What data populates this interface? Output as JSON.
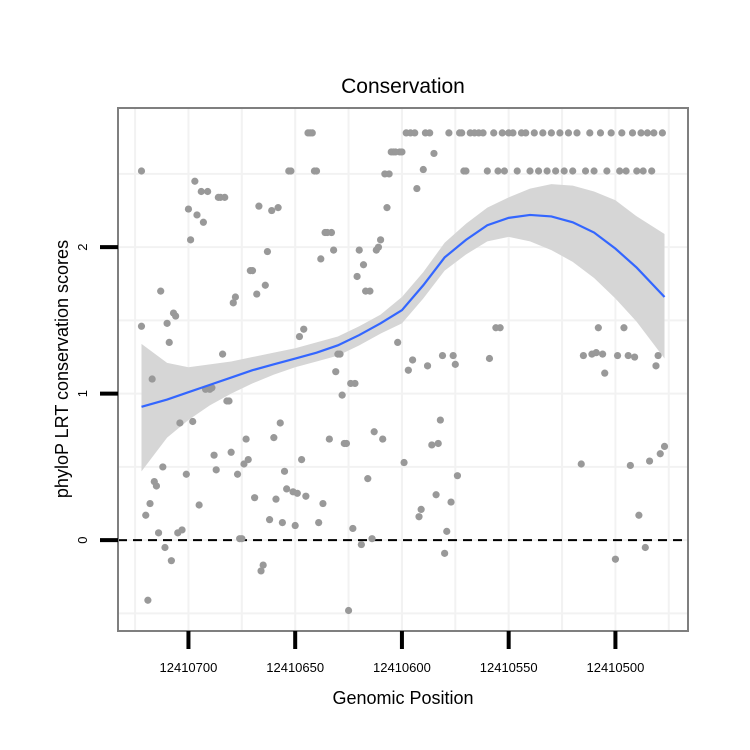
{
  "chart_data": {
    "type": "scatter",
    "title": "Conservation",
    "xlabel": "Genomic Position",
    "ylabel": "phyloP LRT conservation scores",
    "x_reversed": true,
    "xlim": [
      12410733,
      12410466
    ],
    "ylim": [
      -0.62,
      2.95
    ],
    "x_ticks": [
      12410700,
      12410650,
      12410600,
      12410550,
      12410500
    ],
    "x_tick_labels": [
      "12410700",
      "12410650",
      "12410600",
      "12410550",
      "12410500"
    ],
    "y_ticks": [
      0,
      1,
      2
    ],
    "y_tick_labels": [
      "0",
      "1",
      "2"
    ],
    "grid": true,
    "hline": {
      "y": 0,
      "style": "dashed"
    },
    "colors": {
      "points": "#999999",
      "smooth": "#3366FF",
      "ribbon": "#d6d6d6",
      "panel_border": "#7f7f7f",
      "grid": "#f2f2f2"
    },
    "points": [
      [
        12410722,
        2.52
      ],
      [
        12410722,
        1.46
      ],
      [
        12410720,
        0.17
      ],
      [
        12410719,
        -0.41
      ],
      [
        12410718,
        0.25
      ],
      [
        12410717,
        1.1
      ],
      [
        12410716,
        0.4
      ],
      [
        12410715,
        0.37
      ],
      [
        12410714,
        0.05
      ],
      [
        12410713,
        1.7
      ],
      [
        12410712,
        0.5
      ],
      [
        12410711,
        -0.05
      ],
      [
        12410710,
        1.48
      ],
      [
        12410709,
        1.35
      ],
      [
        12410708,
        -0.14
      ],
      [
        12410707,
        1.55
      ],
      [
        12410706,
        1.53
      ],
      [
        12410705,
        0.05
      ],
      [
        12410704,
        0.8
      ],
      [
        12410703,
        0.07
      ],
      [
        12410701,
        0.45
      ],
      [
        12410700,
        2.26
      ],
      [
        12410699,
        2.05
      ],
      [
        12410698,
        0.81
      ],
      [
        12410697,
        2.45
      ],
      [
        12410696,
        2.22
      ],
      [
        12410695,
        0.24
      ],
      [
        12410694,
        2.38
      ],
      [
        12410693,
        2.17
      ],
      [
        12410692,
        1.03
      ],
      [
        12410691,
        2.38
      ],
      [
        12410690,
        1.03
      ],
      [
        12410689,
        1.04
      ],
      [
        12410688,
        0.58
      ],
      [
        12410687,
        0.48
      ],
      [
        12410686,
        2.34
      ],
      [
        12410685,
        2.34
      ],
      [
        12410684,
        1.27
      ],
      [
        12410683,
        2.34
      ],
      [
        12410682,
        0.95
      ],
      [
        12410681,
        0.95
      ],
      [
        12410680,
        0.6
      ],
      [
        12410679,
        1.62
      ],
      [
        12410678,
        1.66
      ],
      [
        12410677,
        0.45
      ],
      [
        12410676,
        0.01
      ],
      [
        12410675,
        0.01
      ],
      [
        12410674,
        0.52
      ],
      [
        12410673,
        0.69
      ],
      [
        12410672,
        0.55
      ],
      [
        12410671,
        1.84
      ],
      [
        12410670,
        1.84
      ],
      [
        12410669,
        0.29
      ],
      [
        12410668,
        1.68
      ],
      [
        12410667,
        2.28
      ],
      [
        12410666,
        -0.21
      ],
      [
        12410665,
        -0.17
      ],
      [
        12410664,
        1.74
      ],
      [
        12410663,
        1.97
      ],
      [
        12410662,
        0.14
      ],
      [
        12410661,
        2.25
      ],
      [
        12410660,
        0.7
      ],
      [
        12410659,
        0.28
      ],
      [
        12410658,
        2.27
      ],
      [
        12410657,
        0.8
      ],
      [
        12410656,
        0.12
      ],
      [
        12410655,
        0.47
      ],
      [
        12410654,
        0.35
      ],
      [
        12410653,
        2.52
      ],
      [
        12410652,
        2.52
      ],
      [
        12410651,
        0.33
      ],
      [
        12410650,
        0.1
      ],
      [
        12410649,
        0.32
      ],
      [
        12410648,
        1.39
      ],
      [
        12410647,
        0.55
      ],
      [
        12410646,
        1.44
      ],
      [
        12410645,
        0.3
      ],
      [
        12410644,
        2.78
      ],
      [
        12410643,
        2.78
      ],
      [
        12410642,
        2.78
      ],
      [
        12410641,
        2.52
      ],
      [
        12410640,
        2.52
      ],
      [
        12410639,
        0.12
      ],
      [
        12410638,
        1.92
      ],
      [
        12410637,
        0.25
      ],
      [
        12410636,
        2.1
      ],
      [
        12410635,
        2.1
      ],
      [
        12410634,
        0.69
      ],
      [
        12410633,
        2.1
      ],
      [
        12410632,
        1.98
      ],
      [
        12410631,
        1.15
      ],
      [
        12410630,
        1.27
      ],
      [
        12410629,
        1.27
      ],
      [
        12410628,
        0.99
      ],
      [
        12410627,
        0.66
      ],
      [
        12410626,
        0.66
      ],
      [
        12410625,
        -0.48
      ],
      [
        12410624,
        1.07
      ],
      [
        12410623,
        0.08
      ],
      [
        12410622,
        1.07
      ],
      [
        12410621,
        1.8
      ],
      [
        12410620,
        1.98
      ],
      [
        12410619,
        -0.03
      ],
      [
        12410618,
        1.88
      ],
      [
        12410617,
        1.7
      ],
      [
        12410616,
        0.42
      ],
      [
        12410615,
        1.7
      ],
      [
        12410614,
        0.01
      ],
      [
        12410613,
        0.74
      ],
      [
        12410612,
        1.98
      ],
      [
        12410611,
        2.0
      ],
      [
        12410610,
        2.05
      ],
      [
        12410609,
        0.69
      ],
      [
        12410608,
        2.5
      ],
      [
        12410607,
        2.27
      ],
      [
        12410606,
        2.5
      ],
      [
        12410605,
        2.65
      ],
      [
        12410604,
        2.65
      ],
      [
        12410603,
        2.65
      ],
      [
        12410602,
        1.35
      ],
      [
        12410601,
        2.65
      ],
      [
        12410600,
        2.65
      ],
      [
        12410599,
        0.53
      ],
      [
        12410598,
        2.78
      ],
      [
        12410597,
        1.16
      ],
      [
        12410596,
        2.78
      ],
      [
        12410595,
        1.23
      ],
      [
        12410594,
        2.78
      ],
      [
        12410593,
        2.4
      ],
      [
        12410592,
        0.16
      ],
      [
        12410591,
        0.21
      ],
      [
        12410590,
        2.53
      ],
      [
        12410589,
        2.78
      ],
      [
        12410588,
        1.19
      ],
      [
        12410587,
        2.78
      ],
      [
        12410586,
        0.65
      ],
      [
        12410585,
        2.64
      ],
      [
        12410584,
        0.31
      ],
      [
        12410583,
        0.66
      ],
      [
        12410582,
        0.82
      ],
      [
        12410581,
        1.26
      ],
      [
        12410580,
        -0.09
      ],
      [
        12410579,
        0.06
      ],
      [
        12410578,
        2.78
      ],
      [
        12410577,
        0.26
      ],
      [
        12410576,
        1.26
      ],
      [
        12410575,
        1.2
      ],
      [
        12410574,
        0.44
      ],
      [
        12410573,
        2.78
      ],
      [
        12410572,
        2.78
      ],
      [
        12410571,
        2.52
      ],
      [
        12410570,
        2.52
      ],
      [
        12410568,
        2.78
      ],
      [
        12410566,
        2.78
      ],
      [
        12410564,
        2.78
      ],
      [
        12410562,
        2.78
      ],
      [
        12410560,
        2.52
      ],
      [
        12410559,
        1.24
      ],
      [
        12410557,
        2.78
      ],
      [
        12410556,
        1.45
      ],
      [
        12410555,
        2.52
      ],
      [
        12410554,
        1.45
      ],
      [
        12410553,
        2.78
      ],
      [
        12410552,
        2.52
      ],
      [
        12410550,
        2.78
      ],
      [
        12410548,
        2.78
      ],
      [
        12410546,
        2.52
      ],
      [
        12410544,
        2.78
      ],
      [
        12410542,
        2.78
      ],
      [
        12410540,
        2.52
      ],
      [
        12410538,
        2.78
      ],
      [
        12410536,
        2.52
      ],
      [
        12410534,
        2.78
      ],
      [
        12410532,
        2.52
      ],
      [
        12410530,
        2.78
      ],
      [
        12410528,
        2.52
      ],
      [
        12410526,
        2.78
      ],
      [
        12410524,
        2.52
      ],
      [
        12410522,
        2.78
      ],
      [
        12410520,
        2.52
      ],
      [
        12410518,
        2.78
      ],
      [
        12410516,
        0.52
      ],
      [
        12410515,
        1.26
      ],
      [
        12410514,
        2.52
      ],
      [
        12410512,
        2.78
      ],
      [
        12410511,
        1.27
      ],
      [
        12410510,
        2.52
      ],
      [
        12410509,
        1.28
      ],
      [
        12410508,
        1.45
      ],
      [
        12410507,
        2.78
      ],
      [
        12410506,
        1.27
      ],
      [
        12410505,
        1.14
      ],
      [
        12410504,
        2.52
      ],
      [
        12410502,
        2.78
      ],
      [
        12410500,
        -0.13
      ],
      [
        12410499,
        1.26
      ],
      [
        12410498,
        2.52
      ],
      [
        12410497,
        2.78
      ],
      [
        12410496,
        1.45
      ],
      [
        12410495,
        2.52
      ],
      [
        12410494,
        1.26
      ],
      [
        12410493,
        0.51
      ],
      [
        12410492,
        2.78
      ],
      [
        12410491,
        1.25
      ],
      [
        12410490,
        2.52
      ],
      [
        12410489,
        0.17
      ],
      [
        12410488,
        2.78
      ],
      [
        12410487,
        2.52
      ],
      [
        12410486,
        -0.05
      ],
      [
        12410485,
        2.78
      ],
      [
        12410484,
        0.54
      ],
      [
        12410483,
        2.52
      ],
      [
        12410482,
        2.78
      ],
      [
        12410481,
        1.19
      ],
      [
        12410480,
        1.26
      ],
      [
        12410479,
        0.59
      ],
      [
        12410478,
        2.78
      ],
      [
        12410477,
        0.64
      ]
    ],
    "smooth": {
      "x": [
        12410722,
        12410710,
        12410700,
        12410690,
        12410680,
        12410670,
        12410660,
        12410650,
        12410640,
        12410630,
        12410620,
        12410610,
        12410600,
        12410590,
        12410580,
        12410570,
        12410560,
        12410550,
        12410540,
        12410530,
        12410520,
        12410510,
        12410500,
        12410490,
        12410477
      ],
      "y": [
        0.91,
        0.96,
        1.01,
        1.06,
        1.11,
        1.16,
        1.2,
        1.24,
        1.28,
        1.33,
        1.4,
        1.48,
        1.57,
        1.74,
        1.93,
        2.05,
        2.15,
        2.2,
        2.22,
        2.21,
        2.17,
        2.1,
        1.99,
        1.86,
        1.66
      ],
      "lower": [
        0.47,
        0.7,
        0.82,
        0.92,
        1.0,
        1.07,
        1.13,
        1.18,
        1.22,
        1.26,
        1.33,
        1.41,
        1.48,
        1.65,
        1.84,
        1.95,
        2.04,
        2.07,
        2.04,
        1.98,
        1.9,
        1.79,
        1.65,
        1.49,
        1.24
      ],
      "upper": [
        1.34,
        1.21,
        1.18,
        1.2,
        1.22,
        1.25,
        1.28,
        1.31,
        1.35,
        1.39,
        1.46,
        1.54,
        1.66,
        1.83,
        2.03,
        2.16,
        2.27,
        2.34,
        2.4,
        2.43,
        2.42,
        2.38,
        2.32,
        2.21,
        2.09
      ]
    }
  }
}
